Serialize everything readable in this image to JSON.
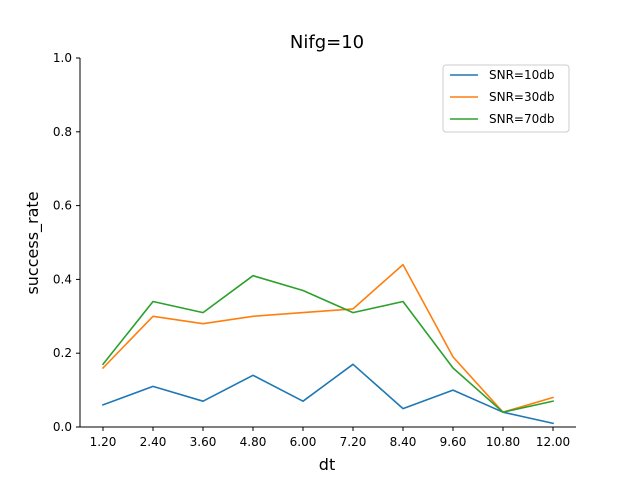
{
  "chart_data": {
    "type": "line",
    "title": "Nifg=10",
    "xlabel": "dt",
    "ylabel": "success_rate",
    "categories": [
      "1.20",
      "2.40",
      "3.60",
      "4.80",
      "6.00",
      "7.20",
      "8.40",
      "9.60",
      "10.80",
      "12.00"
    ],
    "ylim": [
      0,
      1.0
    ],
    "yticks": [
      "0.0",
      "0.2",
      "0.4",
      "0.6",
      "0.8",
      "1.0"
    ],
    "ytick_values": [
      0,
      0.2,
      0.4,
      0.6,
      0.8,
      1.0
    ],
    "grid": false,
    "legend_position": "top-right",
    "series": [
      {
        "name": "SNR=10db",
        "color": "#1f77b4",
        "values": [
          0.06,
          0.11,
          0.07,
          0.14,
          0.07,
          0.17,
          0.05,
          0.1,
          0.04,
          0.01
        ]
      },
      {
        "name": "SNR=30db",
        "color": "#ff7f0e",
        "values": [
          0.16,
          0.3,
          0.28,
          0.3,
          0.31,
          0.32,
          0.44,
          0.19,
          0.04,
          0.08
        ]
      },
      {
        "name": "SNR=70db",
        "color": "#2ca02c",
        "values": [
          0.17,
          0.34,
          0.31,
          0.41,
          0.37,
          0.31,
          0.34,
          0.16,
          0.04,
          0.07
        ]
      }
    ]
  }
}
